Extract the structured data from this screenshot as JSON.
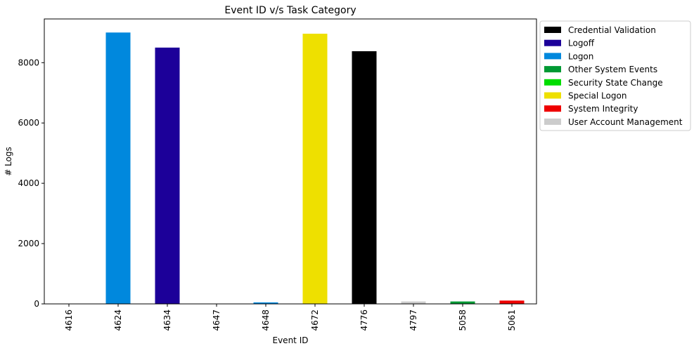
{
  "chart_data": {
    "type": "bar",
    "title": "Event ID v/s Task Category",
    "xlabel": "Event ID",
    "ylabel": "# Logs",
    "ylim": [
      0,
      9450
    ],
    "yticks": [
      0,
      2000,
      4000,
      6000,
      8000
    ],
    "grid": false,
    "legend_placement": "outside-right",
    "categories": [
      "4616",
      "4624",
      "4634",
      "4647",
      "4648",
      "4672",
      "4776",
      "4797",
      "5058",
      "5061"
    ],
    "values": [
      2,
      9000,
      8500,
      3,
      50,
      8960,
      8380,
      80,
      80,
      110
    ],
    "bar_series": [
      "Other System Events",
      "Logon",
      "Logoff",
      "Logoff",
      "Logon",
      "Special Logon",
      "Credential Validation",
      "User Account Management",
      "Other System Events",
      "System Integrity"
    ],
    "legend": [
      {
        "name": "Credential Validation",
        "color": "#000000"
      },
      {
        "name": "Logoff",
        "color": "#1c0099"
      },
      {
        "name": "Logon",
        "color": "#0088dd"
      },
      {
        "name": "Other System Events",
        "color": "#009933"
      },
      {
        "name": "Security State Change",
        "color": "#00dd00"
      },
      {
        "name": "Special Logon",
        "color": "#eee000"
      },
      {
        "name": "System Integrity",
        "color": "#ee0000"
      },
      {
        "name": "User Account Management",
        "color": "#cccccc"
      }
    ]
  }
}
